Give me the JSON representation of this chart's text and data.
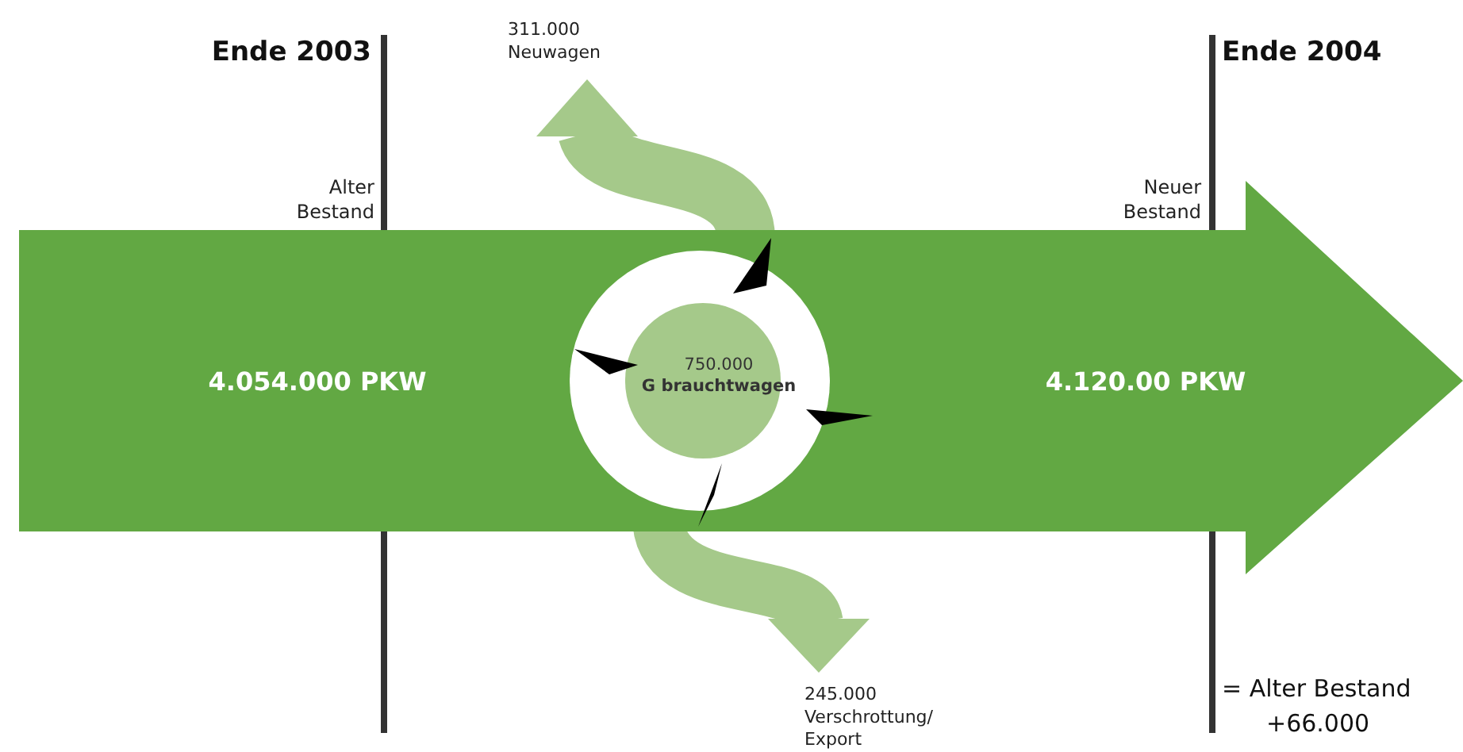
{
  "chart_data": {
    "type": "other",
    "categories": [
      "Alter Bestand",
      "Neuwagen",
      "G  brauchtwagen",
      "Verschrottung/ Export",
      "Neuer Bestand"
    ],
    "values": [
      4054000,
      311000,
      750000,
      245000,
      null
    ],
    "value_labels": [
      "4.054.000 PKW",
      "311.000",
      "750.000",
      "245.000",
      "4.120.00 PKW"
    ],
    "annotations": [
      "Ende 2003",
      "Ende 2004",
      "= Alter Bestand\n+66.000"
    ]
  }
}
